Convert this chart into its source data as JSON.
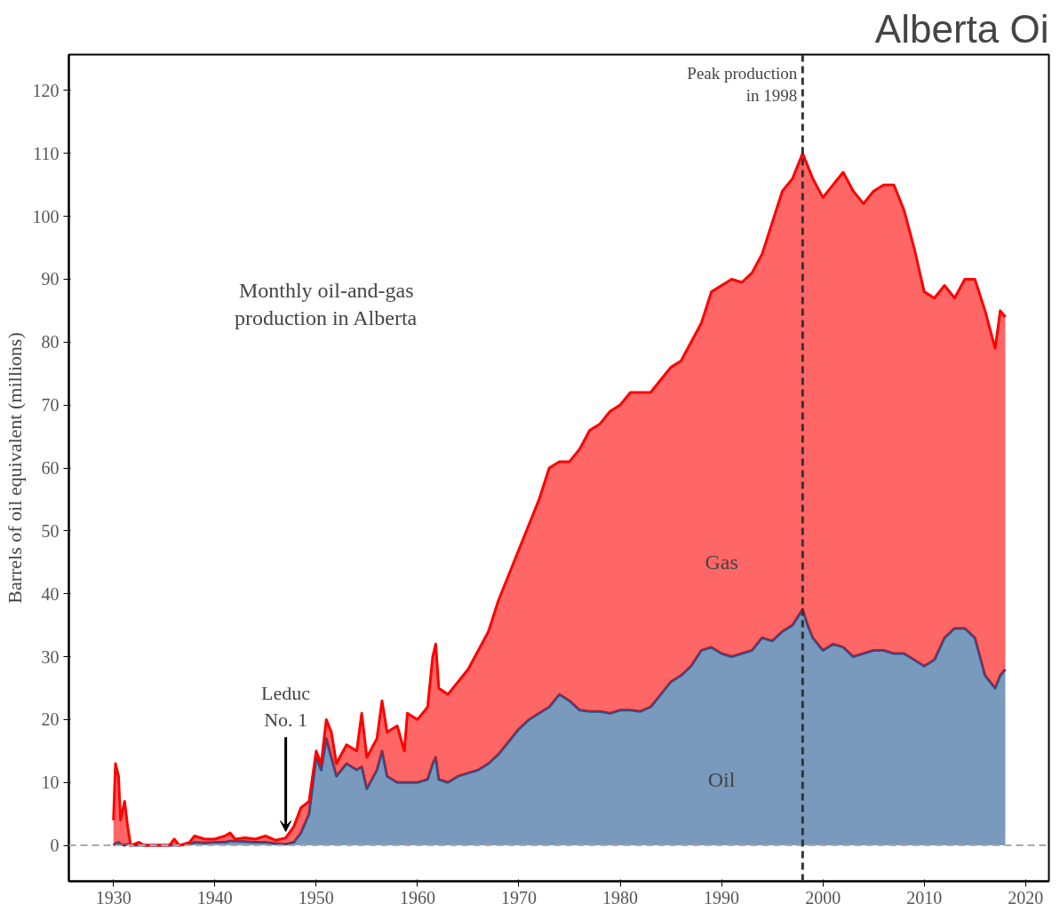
{
  "chart_data": {
    "type": "area",
    "title": "Alberta Oi",
    "ylabel": "Barrels of oil equivalent (millions)",
    "stacked": true,
    "grid": false,
    "xlim": [
      1925.6,
      2022.3
    ],
    "ylim": [
      -5.7,
      125.7
    ],
    "xticks": [
      1930,
      1940,
      1950,
      1960,
      1970,
      1980,
      1990,
      2000,
      2010,
      2020
    ],
    "yticks": [
      0,
      10,
      20,
      30,
      40,
      50,
      60,
      70,
      80,
      90,
      100,
      110,
      120
    ],
    "x": [
      1930,
      1930.2,
      1930.5,
      1930.7,
      1931.1,
      1931.4,
      1931.7,
      1932.5,
      1933,
      1935.5,
      1936,
      1936.5,
      1937.5,
      1938,
      1939,
      1940,
      1941,
      1941.5,
      1942,
      1943,
      1944,
      1945,
      1946,
      1947,
      1947.8,
      1948.5,
      1949.3,
      1950,
      1950.5,
      1951,
      1951.5,
      1952,
      1953,
      1954,
      1954.5,
      1955,
      1956,
      1956.5,
      1957,
      1958,
      1958.7,
      1959,
      1960,
      1961,
      1961.5,
      1961.8,
      1962.1,
      1963,
      1964,
      1965,
      1966,
      1967,
      1968,
      1969,
      1970,
      1971,
      1972,
      1973,
      1974,
      1975,
      1976,
      1977,
      1978,
      1979,
      1980,
      1981,
      1982,
      1983,
      1984,
      1985,
      1986,
      1987,
      1988,
      1989,
      1990,
      1991,
      1992,
      1993,
      1994,
      1995,
      1996,
      1997,
      1998,
      1998.5,
      1999,
      2000,
      2001,
      2002,
      2003,
      2004,
      2005,
      2006,
      2007,
      2008,
      2009,
      2010,
      2011,
      2012,
      2013,
      2014,
      2015,
      2016,
      2017,
      2017.5,
      2018
    ],
    "series": [
      {
        "name": "Oil",
        "color": "#1f5591",
        "values": [
          0,
          0.3,
          0.5,
          0.2,
          0,
          0.2,
          0,
          0,
          0,
          0,
          0,
          0,
          0.2,
          0.5,
          0.4,
          0.5,
          0.5,
          0.7,
          0.7,
          0.6,
          0.5,
          0.5,
          0.3,
          0.2,
          0.5,
          2,
          5,
          14,
          12,
          17,
          14,
          11,
          13,
          12,
          12.5,
          9,
          12,
          15,
          11,
          10,
          10,
          10,
          10,
          10.5,
          13,
          14,
          10.5,
          10,
          11,
          11.5,
          12,
          13,
          14.5,
          16.5,
          18.5,
          20,
          21,
          22,
          24,
          23,
          21.5,
          21.3,
          21.3,
          21,
          21.5,
          21.5,
          21.3,
          22,
          24,
          26,
          27,
          28.5,
          31,
          31.5,
          30.5,
          30,
          30.5,
          31,
          33,
          32.5,
          34,
          35,
          37.5,
          35,
          33,
          31,
          32,
          31.5,
          30,
          30.5,
          31,
          31,
          30.5,
          30.5,
          29.5,
          28.5,
          29.5,
          33,
          34.5,
          34.5,
          33,
          27,
          25,
          27,
          28
        ]
      },
      {
        "name": "Gas",
        "color": "#ff0000",
        "values": [
          4,
          12.7,
          10.5,
          3.8,
          7,
          2.8,
          0,
          0.5,
          0,
          0,
          1,
          0,
          0.3,
          1,
          0.6,
          0.5,
          1,
          1.3,
          0.3,
          0.6,
          0.5,
          1,
          0.5,
          1,
          2.5,
          4,
          2,
          1,
          1,
          3,
          4,
          2,
          3,
          3,
          8.5,
          5,
          5,
          8,
          7,
          9,
          5,
          11,
          10,
          11.5,
          17,
          18,
          14.5,
          14,
          15,
          16.5,
          19,
          21,
          24.5,
          26.5,
          28.5,
          31,
          34,
          38,
          37,
          38,
          41.5,
          44.7,
          45.7,
          48,
          48.5,
          50.5,
          50.7,
          50,
          50,
          50,
          50,
          51.5,
          52,
          56.5,
          58.5,
          60,
          59,
          60,
          61,
          66.5,
          70,
          71,
          72.5,
          73,
          73,
          72,
          73,
          75.5,
          74,
          71.5,
          73,
          74,
          74.5,
          70.5,
          65.5,
          59.5,
          57.5,
          56,
          52.5,
          55.5,
          57,
          58,
          54,
          58,
          56
        ]
      }
    ],
    "ref_lines": [
      {
        "axis": "y",
        "value": 0,
        "color": "#aaaaaa",
        "line_style": "dashed"
      },
      {
        "axis": "x",
        "value": 1998,
        "label": "Peak production\nin 1998",
        "color": "#333333",
        "line_style": "dashed"
      }
    ],
    "annotations": [
      "Monthly oil-and-gas\nproduction in Alberta",
      {
        "text": "Leduc\nNo. 1",
        "x": 1947,
        "y": 1.2
      }
    ]
  }
}
